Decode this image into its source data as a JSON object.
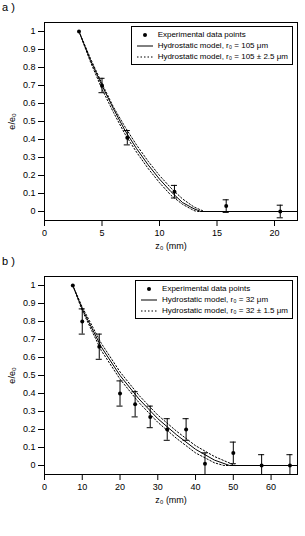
{
  "chart_data": [
    {
      "type": "scatter",
      "title": "a )",
      "x_label": "z₀ (mm)",
      "y_label": "e/e₀",
      "xlim": [
        0,
        22
      ],
      "xticks": [
        0,
        5,
        10,
        15,
        20
      ],
      "ylim": [
        -0.05,
        1.05
      ],
      "yticks": [
        0,
        0.1,
        0.2,
        0.3,
        0.4,
        0.5,
        0.6,
        0.7,
        0.8,
        0.9,
        1
      ],
      "legend": "top-right",
      "series": [
        {
          "name": "Experimental data points",
          "type": "scatter",
          "marker": "dot",
          "color": "#000000",
          "x": [
            3,
            5,
            7.2,
            11.3,
            15.8,
            20.5
          ],
          "values": [
            1.0,
            0.7,
            0.41,
            0.11,
            0.03,
            0.0
          ],
          "error": [
            null,
            0.04,
            0.04,
            0.035,
            0.035,
            0.035
          ]
        },
        {
          "name": "Hydrostatic model, r₀ = 105 μm",
          "type": "line",
          "line_style": "solid",
          "color": "#000000",
          "x": [
            3,
            4,
            5,
            6,
            7,
            8,
            9,
            10,
            11,
            12,
            13,
            13.6,
            22
          ],
          "values": [
            1.0,
            0.84,
            0.7,
            0.57,
            0.45,
            0.35,
            0.26,
            0.18,
            0.11,
            0.05,
            0.015,
            0,
            0
          ]
        },
        {
          "name": "Hydrostatic model, r₀ = 105 ± 2.5 μm",
          "type": "line",
          "line_style": "dotted",
          "color": "#000000",
          "x": [
            3,
            4,
            5,
            6,
            7,
            8,
            9,
            10,
            11,
            12,
            13,
            13.9,
            22
          ],
          "values": [
            1.0,
            0.85,
            0.71,
            0.58,
            0.47,
            0.37,
            0.28,
            0.2,
            0.13,
            0.07,
            0.025,
            0,
            0
          ]
        },
        {
          "name": "Hydrostatic model, r₀ = 105 ± 2.5 μm",
          "type": "line",
          "line_style": "dotted",
          "color": "#000000",
          "x": [
            3,
            4,
            5,
            6,
            7,
            8,
            9,
            10,
            11,
            12,
            13,
            13.3,
            22
          ],
          "values": [
            1.0,
            0.83,
            0.68,
            0.55,
            0.43,
            0.33,
            0.24,
            0.16,
            0.09,
            0.04,
            0.005,
            0,
            0
          ]
        }
      ]
    },
    {
      "type": "scatter",
      "title": "b )",
      "x_label": "z₀ (mm)",
      "y_label": "e/e₀",
      "xlim": [
        0,
        67
      ],
      "xticks": [
        0,
        10,
        20,
        30,
        40,
        50,
        60
      ],
      "ylim": [
        -0.05,
        1.05
      ],
      "yticks": [
        0,
        0.1,
        0.2,
        0.3,
        0.4,
        0.5,
        0.6,
        0.7,
        0.8,
        0.9,
        1
      ],
      "legend": "top-right",
      "series": [
        {
          "name": "Experimental data points",
          "type": "scatter",
          "marker": "dot",
          "color": "#000000",
          "x": [
            7.5,
            10,
            14.5,
            20,
            24,
            28,
            32.5,
            37.5,
            42.5,
            50,
            57.5,
            65
          ],
          "values": [
            1.0,
            0.8,
            0.66,
            0.4,
            0.34,
            0.27,
            0.2,
            0.2,
            0.01,
            0.07,
            0.0,
            0.0
          ],
          "error": [
            null,
            0.07,
            0.07,
            0.07,
            0.07,
            0.06,
            0.06,
            0.06,
            0.06,
            0.06,
            0.06,
            0.06
          ]
        },
        {
          "name": "Hydrostatic model, r₀ = 32 μm",
          "type": "line",
          "line_style": "solid",
          "color": "#000000",
          "x": [
            7.5,
            10,
            15,
            20,
            25,
            30,
            35,
            40,
            45,
            49,
            67
          ],
          "values": [
            1.0,
            0.87,
            0.66,
            0.5,
            0.37,
            0.26,
            0.17,
            0.09,
            0.03,
            0,
            0
          ]
        },
        {
          "name": "Hydrostatic model, r₀ = 32 ± 1.5 μm",
          "type": "line",
          "line_style": "dotted",
          "color": "#000000",
          "x": [
            7.5,
            10,
            15,
            20,
            25,
            30,
            35,
            40,
            45,
            50.5,
            67
          ],
          "values": [
            1.0,
            0.88,
            0.68,
            0.52,
            0.39,
            0.28,
            0.19,
            0.11,
            0.05,
            0,
            0
          ]
        },
        {
          "name": "Hydrostatic model, r₀ = 32 ± 1.5 μm",
          "type": "line",
          "line_style": "dotted",
          "color": "#000000",
          "x": [
            7.5,
            10,
            15,
            20,
            25,
            30,
            35,
            40,
            45,
            47.5,
            67
          ],
          "values": [
            1.0,
            0.86,
            0.64,
            0.48,
            0.35,
            0.24,
            0.15,
            0.07,
            0.015,
            0,
            0
          ]
        }
      ]
    }
  ]
}
